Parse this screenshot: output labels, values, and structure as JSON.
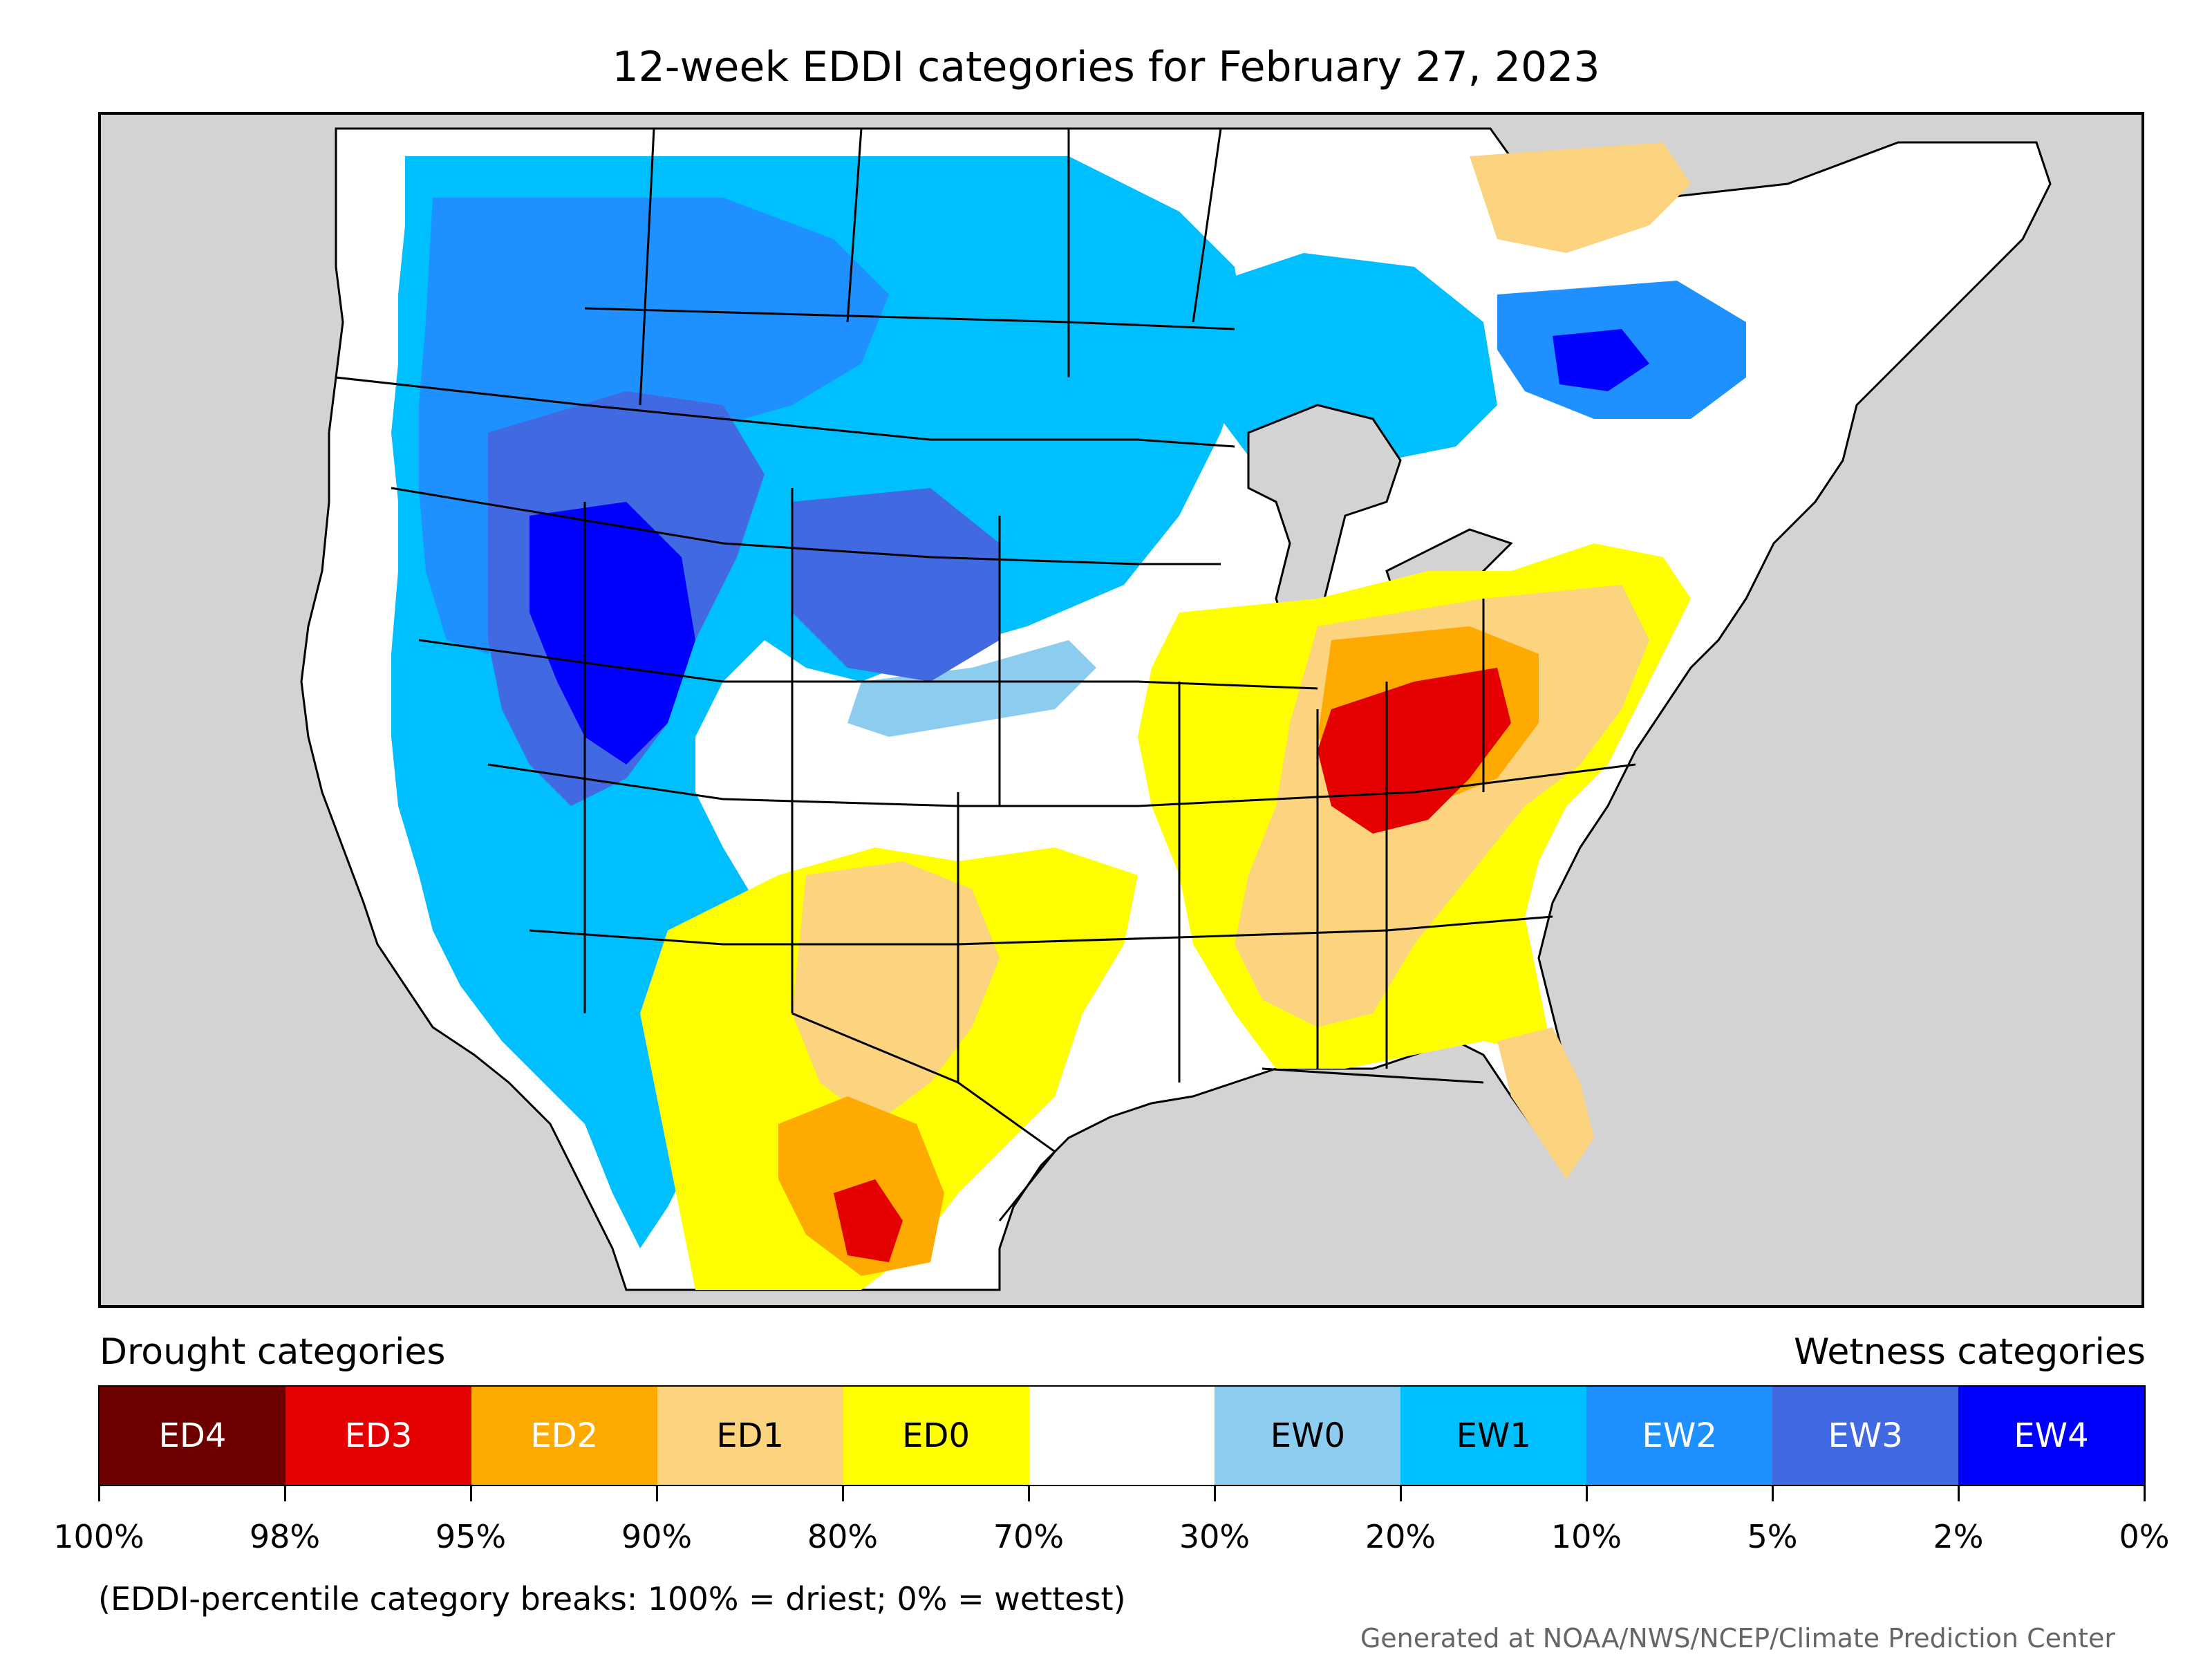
{
  "title": "12-week EDDI categories for February 27, 2023",
  "legend": {
    "drought_heading": "Drought categories",
    "wetness_heading": "Wetness categories",
    "categories": [
      {
        "label": "ED4",
        "color": "#6e0000",
        "text_color": "#ffffff"
      },
      {
        "label": "ED3",
        "color": "#e50000",
        "text_color": "#ffffff"
      },
      {
        "label": "ED2",
        "color": "#ffaa00",
        "text_color": "#ffffff"
      },
      {
        "label": "ED1",
        "color": "#fcd37f",
        "text_color": "#000000"
      },
      {
        "label": "ED0",
        "color": "#ffff00",
        "text_color": "#000000"
      },
      {
        "label": "",
        "color": "#ffffff",
        "text_color": "#000000"
      },
      {
        "label": "EW0",
        "color": "#8ccdef",
        "text_color": "#000000"
      },
      {
        "label": "EW1",
        "color": "#00bfff",
        "text_color": "#000000"
      },
      {
        "label": "EW2",
        "color": "#1e90ff",
        "text_color": "#ffffff"
      },
      {
        "label": "EW3",
        "color": "#4169e1",
        "text_color": "#ffffff"
      },
      {
        "label": "EW4",
        "color": "#0000ff",
        "text_color": "#ffffff"
      }
    ],
    "breaks": [
      "100%",
      "98%",
      "95%",
      "90%",
      "80%",
      "70%",
      "30%",
      "20%",
      "10%",
      "5%",
      "2%",
      "0%"
    ],
    "note": "(EDDI-percentile category breaks: 100% = driest; 0% = wettest)"
  },
  "credit": "Generated at NOAA/NWS/NCEP/Climate Prediction Center",
  "map": {
    "background_color": "#d3d3d3",
    "border_color": "#000000"
  }
}
